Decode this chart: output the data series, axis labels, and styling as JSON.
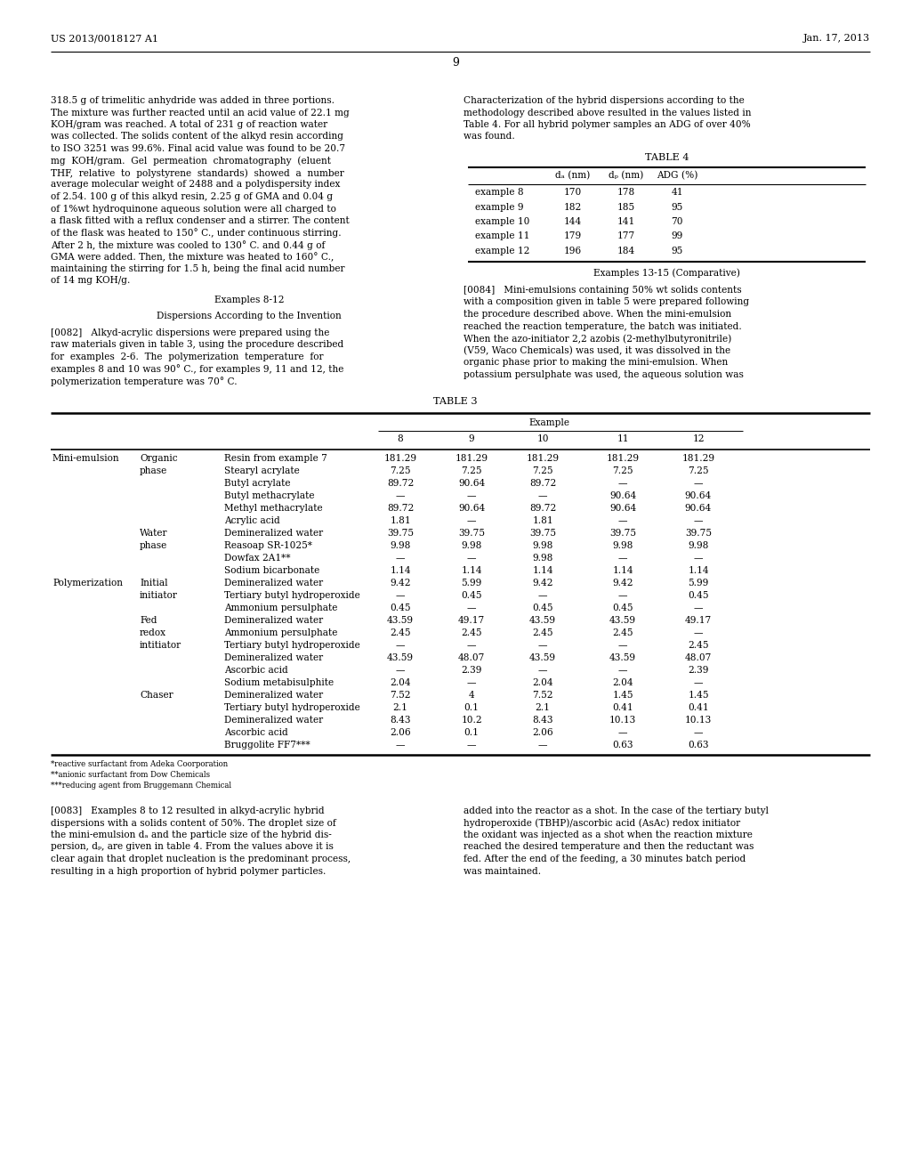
{
  "bg_color": "#ffffff",
  "header_left": "US 2013/0018127 A1",
  "header_right": "Jan. 17, 2013",
  "page_number": "9",
  "left_para_lines": [
    "318.5 g of trimelitic anhydride was added in three portions.",
    "The mixture was further reacted until an acid value of 22.1 mg",
    "KOH/gram was reached. A total of 231 g of reaction water",
    "was collected. The solids content of the alkyd resin according",
    "to ISO 3251 was 99.6%. Final acid value was found to be 20.7",
    "mg  KOH/gram.  Gel  permeation  chromatography  (eluent",
    "THF,  relative  to  polystyrene  standards)  showed  a  number",
    "average molecular weight of 2488 and a polydispersity index",
    "of 2.54. 100 g of this alkyd resin, 2.25 g of GMA and 0.04 g",
    "of 1%wt hydroquinone aqueous solution were all charged to",
    "a flask fitted with a reflux condenser and a stirrer. The content",
    "of the flask was heated to 150° C., under continuous stirring.",
    "After 2 h, the mixture was cooled to 130° C. and 0.44 g of",
    "GMA were added. Then, the mixture was heated to 160° C.,",
    "maintaining the stirring for 1.5 h, being the final acid number",
    "of 14 mg KOH/g."
  ],
  "ex812_title": "Examples 8-12",
  "disp_title": "Dispersions According to the Invention",
  "para_0082_lines": [
    "[0082]   Alkyd-acrylic dispersions were prepared using the",
    "raw materials given in table 3, using the procedure described",
    "for  examples  2-6.  The  polymerization  temperature  for",
    "examples 8 and 10 was 90° C., for examples 9, 11 and 12, the",
    "polymerization temperature was 70° C."
  ],
  "right_para_lines": [
    "Characterization of the hybrid dispersions according to the",
    "methodology described above resulted in the values listed in",
    "Table 4. For all hybrid polymer samples an ADG of over 40%",
    "was found."
  ],
  "table4_title": "TABLE 4",
  "table4_col_headers": [
    "dₐ (nm)",
    "dₚ (nm)",
    "ADG (%)"
  ],
  "table4_rows": [
    [
      "example 8",
      "170",
      "178",
      "41"
    ],
    [
      "example 9",
      "182",
      "185",
      "95"
    ],
    [
      "example 10",
      "144",
      "141",
      "70"
    ],
    [
      "example 11",
      "179",
      "177",
      "99"
    ],
    [
      "example 12",
      "196",
      "184",
      "95"
    ]
  ],
  "ex1315_title": "Examples 13-15 (Comparative)",
  "para_0084_lines": [
    "[0084]   Mini-emulsions containing 50% wt solids contents",
    "with a composition given in table 5 were prepared following",
    "the procedure described above. When the mini-emulsion",
    "reached the reaction temperature, the batch was initiated.",
    "When the azo-initiator 2,2 azobis (2-methylbutyronitrile)",
    "(V59, Waco Chemicals) was used, it was dissolved in the",
    "organic phase prior to making the mini-emulsion. When",
    "potassium persulphate was used, the aqueous solution was"
  ],
  "table3_title": "TABLE 3",
  "table3_cols": [
    "8",
    "9",
    "10",
    "11",
    "12"
  ],
  "table3_rows": [
    {
      "cat1": "Mini-emulsion",
      "cat2": "Organic",
      "ingredient": "Resin from example 7",
      "vals": [
        "181.29",
        "181.29",
        "181.29",
        "181.29",
        "181.29"
      ]
    },
    {
      "cat1": "",
      "cat2": "phase",
      "ingredient": "Stearyl acrylate",
      "vals": [
        "7.25",
        "7.25",
        "7.25",
        "7.25",
        "7.25"
      ]
    },
    {
      "cat1": "",
      "cat2": "",
      "ingredient": "Butyl acrylate",
      "vals": [
        "89.72",
        "90.64",
        "89.72",
        "—",
        "—"
      ]
    },
    {
      "cat1": "",
      "cat2": "",
      "ingredient": "Butyl methacrylate",
      "vals": [
        "—",
        "—",
        "—",
        "90.64",
        "90.64"
      ]
    },
    {
      "cat1": "",
      "cat2": "",
      "ingredient": "Methyl methacrylate",
      "vals": [
        "89.72",
        "90.64",
        "89.72",
        "90.64",
        "90.64"
      ]
    },
    {
      "cat1": "",
      "cat2": "",
      "ingredient": "Acrylic acid",
      "vals": [
        "1.81",
        "—",
        "1.81",
        "—",
        "—"
      ]
    },
    {
      "cat1": "",
      "cat2": "Water",
      "ingredient": "Demineralized water",
      "vals": [
        "39.75",
        "39.75",
        "39.75",
        "39.75",
        "39.75"
      ]
    },
    {
      "cat1": "",
      "cat2": "phase",
      "ingredient": "Reasoap SR-1025*",
      "vals": [
        "9.98",
        "9.98",
        "9.98",
        "9.98",
        "9.98"
      ]
    },
    {
      "cat1": "",
      "cat2": "",
      "ingredient": "Dowfax 2A1**",
      "vals": [
        "—",
        "—",
        "9.98",
        "—",
        "—"
      ]
    },
    {
      "cat1": "",
      "cat2": "",
      "ingredient": "Sodium bicarbonate",
      "vals": [
        "1.14",
        "1.14",
        "1.14",
        "1.14",
        "1.14"
      ]
    },
    {
      "cat1": "Polymerization",
      "cat2": "Initial",
      "ingredient": "Demineralized water",
      "vals": [
        "9.42",
        "5.99",
        "9.42",
        "9.42",
        "5.99"
      ]
    },
    {
      "cat1": "",
      "cat2": "initiator",
      "ingredient": "Tertiary butyl hydroperoxide",
      "vals": [
        "—",
        "0.45",
        "—",
        "—",
        "0.45"
      ]
    },
    {
      "cat1": "",
      "cat2": "",
      "ingredient": "Ammonium persulphate",
      "vals": [
        "0.45",
        "—",
        "0.45",
        "0.45",
        "—"
      ]
    },
    {
      "cat1": "",
      "cat2": "Fed",
      "ingredient": "Demineralized water",
      "vals": [
        "43.59",
        "49.17",
        "43.59",
        "43.59",
        "49.17"
      ]
    },
    {
      "cat1": "",
      "cat2": "redox",
      "ingredient": "Ammonium persulphate",
      "vals": [
        "2.45",
        "2.45",
        "2.45",
        "2.45",
        "—"
      ]
    },
    {
      "cat1": "",
      "cat2": "intitiator",
      "ingredient": "Tertiary butyl hydroperoxide",
      "vals": [
        "—",
        "—",
        "—",
        "—",
        "2.45"
      ]
    },
    {
      "cat1": "",
      "cat2": "",
      "ingredient": "Demineralized water",
      "vals": [
        "43.59",
        "48.07",
        "43.59",
        "43.59",
        "48.07"
      ]
    },
    {
      "cat1": "",
      "cat2": "",
      "ingredient": "Ascorbic acid",
      "vals": [
        "—",
        "2.39",
        "—",
        "—",
        "2.39"
      ]
    },
    {
      "cat1": "",
      "cat2": "",
      "ingredient": "Sodium metabisulphite",
      "vals": [
        "2.04",
        "—",
        "2.04",
        "2.04",
        "—"
      ]
    },
    {
      "cat1": "",
      "cat2": "Chaser",
      "ingredient": "Demineralized water",
      "vals": [
        "7.52",
        "4",
        "7.52",
        "1.45",
        "1.45"
      ]
    },
    {
      "cat1": "",
      "cat2": "",
      "ingredient": "Tertiary butyl hydroperoxide",
      "vals": [
        "2.1",
        "0.1",
        "2.1",
        "0.41",
        "0.41"
      ]
    },
    {
      "cat1": "",
      "cat2": "",
      "ingredient": "Demineralized water",
      "vals": [
        "8.43",
        "10.2",
        "8.43",
        "10.13",
        "10.13"
      ]
    },
    {
      "cat1": "",
      "cat2": "",
      "ingredient": "Ascorbic acid",
      "vals": [
        "2.06",
        "0.1",
        "2.06",
        "—",
        "—"
      ]
    },
    {
      "cat1": "",
      "cat2": "",
      "ingredient": "Bruggolite FF7***",
      "vals": [
        "—",
        "—",
        "—",
        "0.63",
        "0.63"
      ]
    }
  ],
  "footnotes": [
    "*reactive surfactant from Adeka Coorporation",
    "**anionic surfactant from Dow Chemicals",
    "***reducing agent from Bruggemann Chemical"
  ],
  "para_0083_lines": [
    "[0083]   Examples 8 to 12 resulted in alkyd-acrylic hybrid",
    "dispersions with a solids content of 50%. The droplet size of",
    "the mini-emulsion dₐ and the particle size of the hybrid dis-",
    "persion, dₚ, are given in table 4. From the values above it is",
    "clear again that droplet nucleation is the predominant process,",
    "resulting in a high proportion of hybrid polymer particles."
  ],
  "right_bottom_lines": [
    "added into the reactor as a shot. In the case of the tertiary butyl",
    "hydroperoxide (TBHP)/ascorbic acid (AsAc) redox initiator",
    "the oxidant was injected as a shot when the reaction mixture",
    "reached the desired temperature and then the reductant was",
    "fed. After the end of the feeding, a 30 minutes batch period",
    "was maintained."
  ]
}
